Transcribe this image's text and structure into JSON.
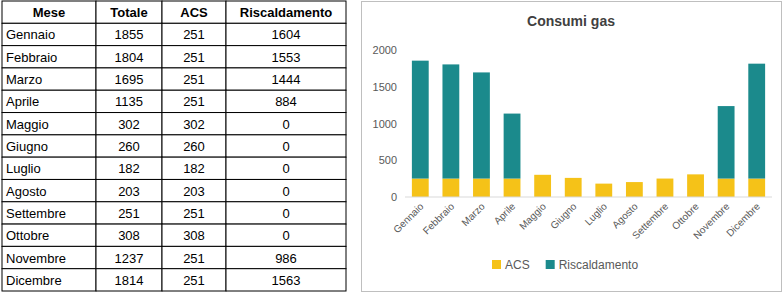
{
  "table": {
    "header": [
      "Mese",
      "Totale",
      "ACS",
      "Riscaldamento"
    ],
    "rows": [
      [
        "Gennaio",
        1855,
        251,
        1604
      ],
      [
        "Febbraio",
        1804,
        251,
        1553
      ],
      [
        "Marzo",
        1695,
        251,
        1444
      ],
      [
        "Aprile",
        1135,
        251,
        884
      ],
      [
        "Maggio",
        302,
        302,
        0
      ],
      [
        "Giugno",
        260,
        260,
        0
      ],
      [
        "Luglio",
        182,
        182,
        0
      ],
      [
        "Agosto",
        203,
        203,
        0
      ],
      [
        "Settembre",
        251,
        251,
        0
      ],
      [
        "Ottobre",
        308,
        308,
        0
      ],
      [
        "Novembre",
        1237,
        251,
        986
      ],
      [
        "Dicembre",
        1814,
        251,
        1563
      ]
    ]
  },
  "chart_data": {
    "type": "bar",
    "title": "Consumi gas",
    "stacked": true,
    "legend": "bottom",
    "grid": false,
    "categories": [
      "Gennaio",
      "Febbraio",
      "Marzo",
      "Aprile",
      "Maggio",
      "Giugno",
      "Luglio",
      "Agosto",
      "Settembre",
      "Ottobre",
      "Novembre",
      "Dicembre"
    ],
    "series": [
      {
        "name": "ACS",
        "color": "#f5c218",
        "values": [
          251,
          251,
          251,
          251,
          302,
          260,
          182,
          203,
          251,
          308,
          251,
          251
        ]
      },
      {
        "name": "Riscaldamento",
        "color": "#1b8a8c",
        "values": [
          1604,
          1553,
          1444,
          884,
          0,
          0,
          0,
          0,
          0,
          0,
          986,
          1563
        ]
      }
    ],
    "ylim": [
      0,
      2000
    ],
    "yticks": [
      0,
      500,
      1000,
      1500,
      2000
    ]
  }
}
